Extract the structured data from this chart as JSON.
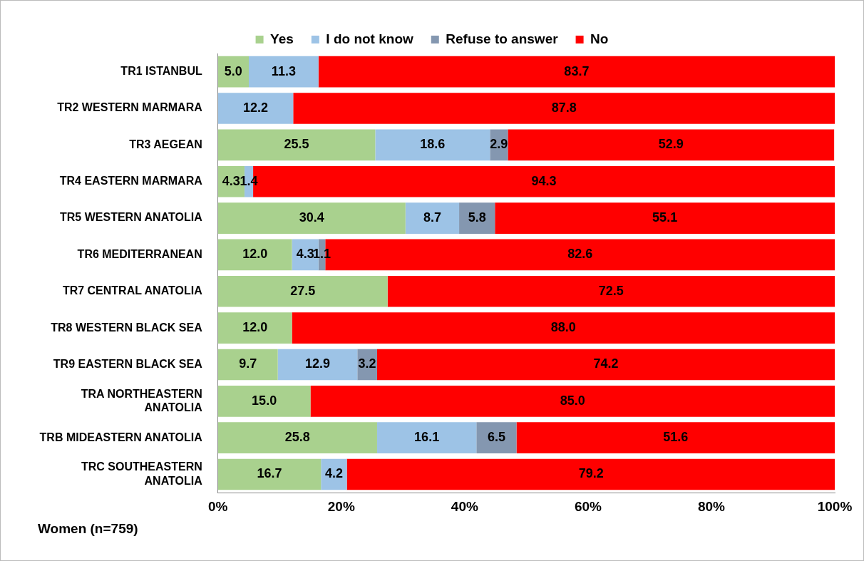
{
  "chart_data": {
    "type": "bar",
    "orientation": "horizontal",
    "stacked": true,
    "categories": [
      "TR1 ISTANBUL",
      "TR2 WESTERN MARMARA",
      "TR3 AEGEAN",
      "TR4 EASTERN MARMARA",
      "TR5 WESTERN ANATOLIA",
      "TR6 MEDITERRANEAN",
      "TR7 CENTRAL ANATOLIA",
      "TR8 WESTERN BLACK SEA",
      "TR9 EASTERN BLACK SEA",
      "TRA NORTHEASTERN ANATOLIA",
      "TRB MIDEASTERN ANATOLIA",
      "TRC SOUTHEASTERN ANATOLIA"
    ],
    "series": [
      {
        "name": "Yes",
        "color": "#a9d18e",
        "values": [
          5.0,
          null,
          25.5,
          4.3,
          30.4,
          12.0,
          27.5,
          12.0,
          9.7,
          15.0,
          25.8,
          16.7
        ],
        "value_labels": [
          "5.0",
          null,
          "25.5",
          "4.3",
          "30.4",
          "12.0",
          "27.5",
          "12.0",
          "9.7",
          "15.0",
          "25.8",
          "16.7"
        ]
      },
      {
        "name": "I do not know",
        "color": "#9dc3e6",
        "values": [
          11.3,
          12.2,
          18.6,
          1.4,
          8.7,
          4.3,
          null,
          null,
          12.9,
          null,
          16.1,
          4.2
        ],
        "value_labels": [
          "11.3",
          "12.2",
          "18.6",
          "1.4",
          "8.7",
          "4.3",
          null,
          null,
          "12.9",
          null,
          "16.1",
          "4.2"
        ]
      },
      {
        "name": "Refuse to answer",
        "color": "#8497b0",
        "values": [
          null,
          null,
          2.9,
          null,
          5.8,
          1.1,
          null,
          null,
          3.2,
          null,
          6.5,
          null
        ],
        "value_labels": [
          null,
          null,
          "2.9",
          null,
          "5.8",
          "1.1",
          null,
          null,
          "3.2",
          null,
          "6.5",
          null
        ]
      },
      {
        "name": "No",
        "color": "#ff0000",
        "values": [
          83.7,
          87.8,
          52.9,
          94.3,
          55.1,
          82.6,
          72.5,
          88.0,
          74.2,
          85.0,
          51.6,
          79.2
        ],
        "value_labels": [
          "83.7",
          "87.8",
          "52.9",
          "94.3",
          "55.1",
          "82.6",
          "72.5",
          "88.0",
          "74.2",
          "85.0",
          "51.6",
          "79.2"
        ]
      }
    ],
    "xlim": [
      0,
      100
    ],
    "xticks": [
      {
        "value": 0,
        "label": "0%"
      },
      {
        "value": 20,
        "label": "20%"
      },
      {
        "value": 40,
        "label": "40%"
      },
      {
        "value": 60,
        "label": "60%"
      },
      {
        "value": 80,
        "label": "80%"
      },
      {
        "value": 100,
        "label": "100%"
      }
    ],
    "grid": false,
    "legend": "top",
    "annotations": [
      "Women (n=759)"
    ]
  }
}
